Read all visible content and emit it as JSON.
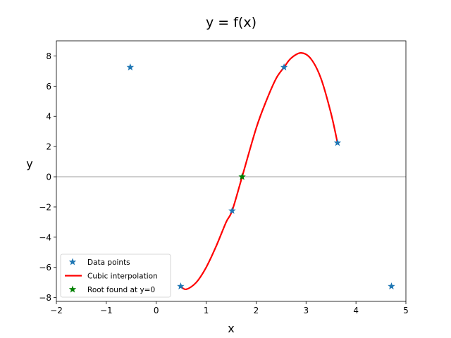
{
  "chart_data": {
    "type": "line",
    "title": "y = f(x)",
    "xlabel": "x",
    "ylabel": "y",
    "xlim": [
      -2,
      5
    ],
    "ylim": [
      -8.25,
      9.0
    ],
    "xticks": [
      -2,
      -1,
      0,
      1,
      2,
      3,
      4,
      5
    ],
    "xtick_labels": [
      "−2",
      "−1",
      "0",
      "1",
      "2",
      "3",
      "4",
      "5"
    ],
    "yticks": [
      -8,
      -6,
      -4,
      -2,
      0,
      2,
      4,
      6,
      8
    ],
    "ytick_labels": [
      "−8",
      "−6",
      "−4",
      "−2",
      "0",
      "2",
      "4",
      "6",
      "8"
    ],
    "grid": false,
    "legend_position": "lower-left",
    "reference_line": {
      "y": 0,
      "color": "#bfbfbf"
    },
    "series": [
      {
        "name": "Data points",
        "kind": "scatter",
        "marker": "star",
        "color": "#1f77b4",
        "x": [
          -0.52,
          0.49,
          1.52,
          2.56,
          3.63,
          4.71
        ],
        "y": [
          7.25,
          -7.25,
          -2.25,
          7.25,
          2.25,
          -7.25
        ]
      },
      {
        "name": "Cubic interpolation",
        "kind": "line",
        "color": "#ff0000",
        "x": [
          0.49,
          0.6,
          0.8,
          1.0,
          1.2,
          1.4,
          1.52,
          1.72,
          2.0,
          2.2,
          2.4,
          2.56,
          2.7,
          2.9,
          3.1,
          3.3,
          3.5,
          3.63
        ],
        "y": [
          -7.25,
          -7.45,
          -7.0,
          -6.0,
          -4.6,
          -3.0,
          -2.25,
          0.0,
          3.2,
          5.0,
          6.5,
          7.25,
          7.85,
          8.2,
          7.8,
          6.5,
          4.2,
          2.25
        ]
      },
      {
        "name": "Root found at y=0",
        "kind": "scatter",
        "marker": "star",
        "color": "#008000",
        "x": [
          1.72
        ],
        "y": [
          0.0
        ]
      }
    ]
  }
}
